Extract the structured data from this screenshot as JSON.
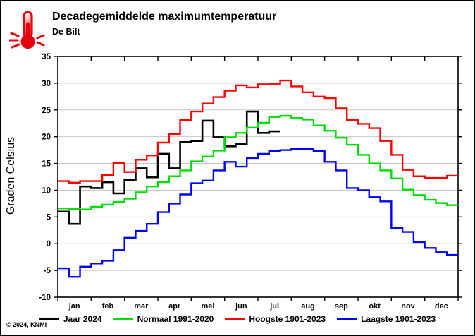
{
  "header": {
    "title": "Decadegemiddelde maximumtemperatuur",
    "subtitle": "De Bilt",
    "icon": "hot-thermometer-icon",
    "icon_color": "#e8000d"
  },
  "footer": {
    "copyright": "© 2024, KNMI"
  },
  "colors": {
    "background": "#ffffff",
    "frame": "#000000",
    "grid": "#c8c8c8"
  },
  "chart_data": {
    "type": "line",
    "step": true,
    "title": "Decadegemiddelde maximumtemperatuur",
    "subtitle": "De Bilt",
    "xlabel": "",
    "ylabel": "Graden Celsius",
    "ylim": [
      -10,
      35
    ],
    "ytick_interval": 5,
    "ytick_labels": [
      "35",
      "30",
      "25",
      "20",
      "15",
      "10",
      "5",
      "0",
      "-5",
      "-10"
    ],
    "grid": true,
    "legend_position": "bottom",
    "months": [
      "jan",
      "feb",
      "mar",
      "apr",
      "mei",
      "jun",
      "jul",
      "aug",
      "sep",
      "okt",
      "nov",
      "dec"
    ],
    "decades_per_month": 3,
    "series": [
      {
        "name": "Jaar 2024",
        "color": "#000000",
        "width": 2.6,
        "values": [
          6.0,
          3.7,
          10.7,
          10.4,
          11.5,
          9.4,
          11.9,
          14.1,
          12.4,
          16.8,
          14.1,
          19.0,
          19.2,
          23.0,
          19.9,
          18.2,
          18.6,
          24.7,
          20.7,
          21.0
        ]
      },
      {
        "name": "Normaal 1991-2020",
        "color": "#00dd00",
        "width": 2.4,
        "values": [
          6.6,
          6.5,
          6.4,
          6.9,
          7.3,
          7.8,
          8.4,
          9.6,
          10.7,
          11.5,
          12.6,
          13.7,
          15.4,
          16.3,
          17.4,
          19.9,
          20.7,
          21.7,
          22.6,
          23.7,
          23.9,
          23.5,
          23.2,
          22.1,
          21.1,
          19.8,
          18.5,
          16.6,
          15.0,
          13.7,
          12.2,
          10.1,
          9.1,
          8.2,
          7.6,
          7.2
        ]
      },
      {
        "name": "Hoogste 1901-2023",
        "color": "#ff0000",
        "width": 2.4,
        "values": [
          11.7,
          11.4,
          11.7,
          11.7,
          12.8,
          15.1,
          13.4,
          15.7,
          16.5,
          18.9,
          20.5,
          23.1,
          24.7,
          26.2,
          27.4,
          28.6,
          29.6,
          29.2,
          29.8,
          29.9,
          30.5,
          29.4,
          28.3,
          27.5,
          27.2,
          25.3,
          23.1,
          22.4,
          21.6,
          19.2,
          16.6,
          13.8,
          12.6,
          12.3,
          12.3,
          12.7
        ]
      },
      {
        "name": "Laagste 1901-2023",
        "color": "#0000ff",
        "width": 2.4,
        "values": [
          -4.6,
          -6.2,
          -4.3,
          -3.7,
          -3.2,
          -1.2,
          1.1,
          2.4,
          3.7,
          5.9,
          7.5,
          9.2,
          11.3,
          11.8,
          13.7,
          15.3,
          14.4,
          16.0,
          16.8,
          17.3,
          17.5,
          17.7,
          17.7,
          17.3,
          15.3,
          13.7,
          10.4,
          10.0,
          8.7,
          7.9,
          2.9,
          2.2,
          0.3,
          -0.8,
          -1.6,
          -2.1
        ]
      }
    ]
  }
}
